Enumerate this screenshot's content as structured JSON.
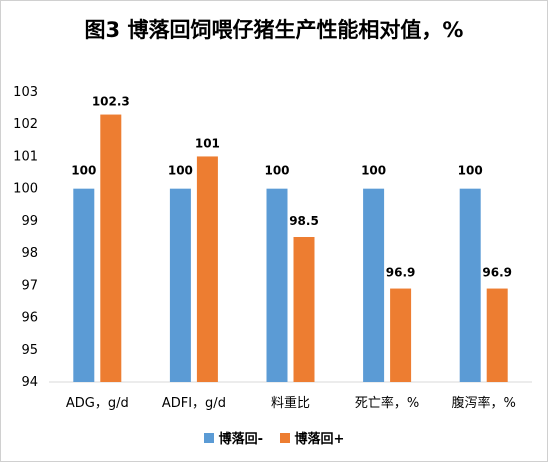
{
  "chart_data": {
    "type": "bar",
    "title": "图3 博落回饲喂仔猪生产性能相对值，%",
    "categories": [
      "ADG，g/d",
      "ADFI，g/d",
      "料重比",
      "死亡率，%",
      "腹泻率，%"
    ],
    "series": [
      {
        "name": "博落回-",
        "color": "#5b9bd5",
        "values": [
          100,
          100,
          100,
          100,
          100
        ]
      },
      {
        "name": "博落回+",
        "color": "#ed7d31",
        "values": [
          102.3,
          101,
          98.5,
          96.9,
          96.9
        ]
      }
    ],
    "ylim": [
      94,
      103
    ],
    "yticks": [
      94,
      95,
      96,
      97,
      98,
      99,
      100,
      101,
      102,
      103
    ],
    "grid": false,
    "legend": "bottom",
    "data_labels": [
      [
        "100",
        "100",
        "100",
        "100",
        "100"
      ],
      [
        "102.3",
        "101",
        "98.5",
        "96.9",
        "96.9"
      ]
    ]
  }
}
